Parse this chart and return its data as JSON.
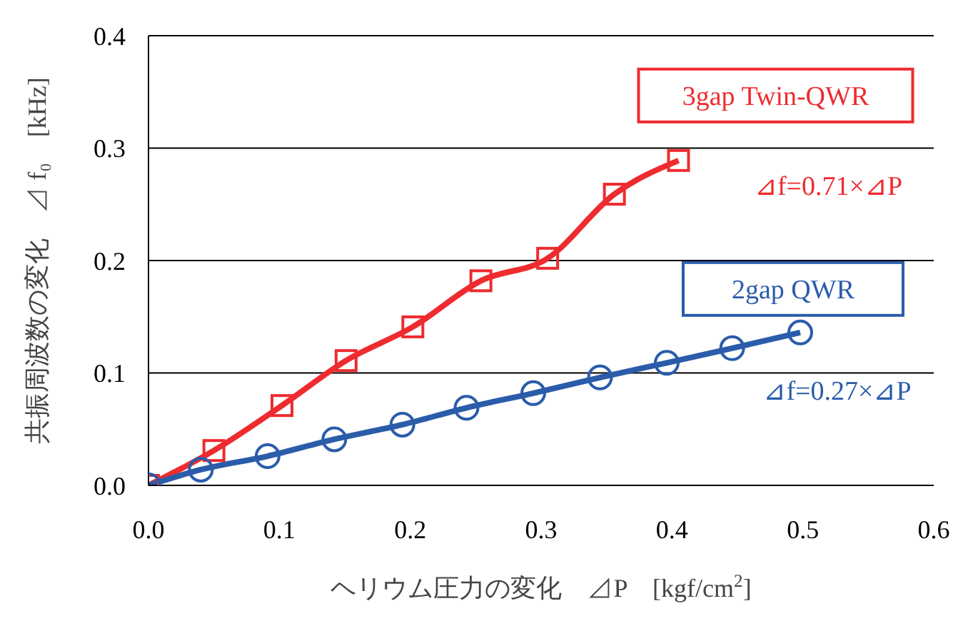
{
  "chart_data": {
    "type": "line",
    "xlabel": "ヘリウム圧力の変化　⊿P　[kgf/cm$^{2}$]",
    "ylabel": "共振周波数の変化　⊿ f₀　[kHz]",
    "series": [
      {
        "name": "3gap Twin-QWR",
        "color": "#ee2b2f",
        "marker": "square",
        "x": [
          0,
          0.05,
          0.102,
          0.151,
          0.202,
          0.254,
          0.305,
          0.356,
          0.405
        ],
        "values": [
          0,
          0.031,
          0.071,
          0.111,
          0.141,
          0.182,
          0.202,
          0.259,
          0.289
        ]
      },
      {
        "name": "2gap QWR",
        "color": "#2a5caa",
        "marker": "circle",
        "x": [
          0,
          0.04,
          0.091,
          0.142,
          0.194,
          0.243,
          0.294,
          0.345,
          0.396,
          0.446,
          0.498
        ],
        "values": [
          0,
          0.014,
          0.026,
          0.041,
          0.054,
          0.069,
          0.082,
          0.096,
          0.109,
          0.122,
          0.136
        ]
      }
    ],
    "annotations": [
      "⊿f=0.71×⊿P",
      "⊿f=0.27×⊿P"
    ],
    "xlim": [
      0,
      0.6
    ],
    "xticks": [
      {
        "value": 0,
        "label": "0.0"
      },
      0.1,
      0.2,
      0.3,
      0.4,
      0.5,
      0.6
    ],
    "ylim": [
      0,
      0.4
    ],
    "yticks": [
      {
        "value": 0,
        "label": "0.0"
      },
      0.1,
      0.2,
      0.3,
      0.4
    ],
    "grid": "y",
    "legend": false
  }
}
